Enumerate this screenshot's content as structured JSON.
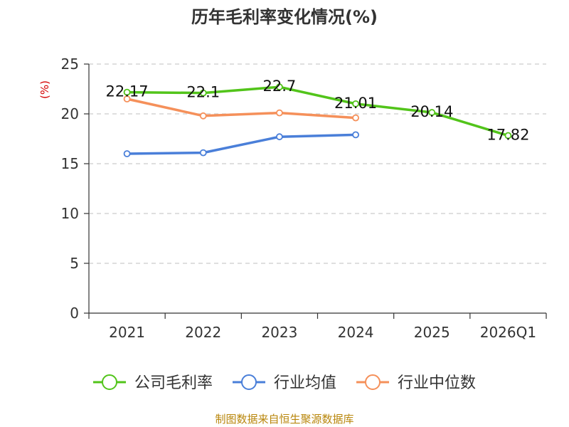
{
  "chart_data": {
    "type": "line",
    "title": "历年毛利率变化情况(%)",
    "ylabel": "(%)",
    "categories": [
      "2021",
      "2022",
      "2023",
      "2024",
      "2025",
      "2026Q1"
    ],
    "ylim": [
      0,
      25
    ],
    "yticks": [
      0,
      5,
      10,
      15,
      20,
      25
    ],
    "grid": true,
    "legend_position": "bottom",
    "series": [
      {
        "name": "公司毛利率",
        "color": "#52c41a",
        "values": [
          22.17,
          22.1,
          22.7,
          21.01,
          20.14,
          17.82
        ],
        "labels": [
          "22.17",
          "22.1",
          "22.7",
          "21.01",
          "20.14",
          "17.82"
        ]
      },
      {
        "name": "行业均值",
        "color": "#4a7fd9",
        "values": [
          16.0,
          16.1,
          17.7,
          17.9,
          null,
          null
        ]
      },
      {
        "name": "行业中位数",
        "color": "#f5905a",
        "values": [
          21.5,
          19.8,
          20.1,
          19.6,
          null,
          null
        ]
      }
    ]
  },
  "source": "制图数据来自恒生聚源数据库"
}
